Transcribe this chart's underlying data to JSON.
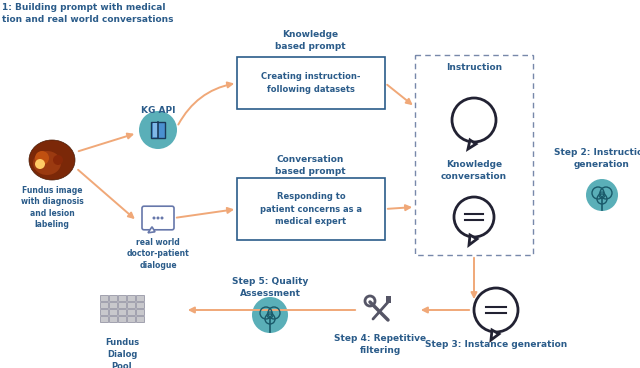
{
  "bg_color": "#ffffff",
  "arrow_color": "#F0A878",
  "box_border_color": "#2B5C8A",
  "text_dark": "#2B5C8A",
  "teal_fill": "#5AAFB8",
  "teal_light": "#88CCCC",
  "icon_dark": "#333333",
  "icon_mid": "#555566",
  "grid_fill": "#C8C8CC",
  "grid_ec": "#888899",
  "title": "1: Building prompt with medical\ntion and real world conversations",
  "step2_label": "Step 2: Instruction\ngeneration",
  "step3_label": "Step 3: Instance generation",
  "step4_label": "Step 4: Repetitive\nfiltering",
  "step5_label": "Step 5: Quality\nAssessment",
  "kg_api_label": "KG API",
  "real_world_label": "real world\ndoctor-patient\ndialogue",
  "knowledge_prompt": "Knowledge\nbased prompt",
  "conv_prompt": "Conversation\nbased prompt",
  "box1_text": "Creating instruction-\nfollowing datasets",
  "box2_text": "Responding to\npatient concerns as a\nmedical expert",
  "dash_label1": "Instruction",
  "dash_label2": "Knowledge\nconversation",
  "fundus_label": "Fundus image\nwith diagnosis\nand lesion\nlabeling",
  "dialog_label": "Fundus\nDialog\nPool"
}
